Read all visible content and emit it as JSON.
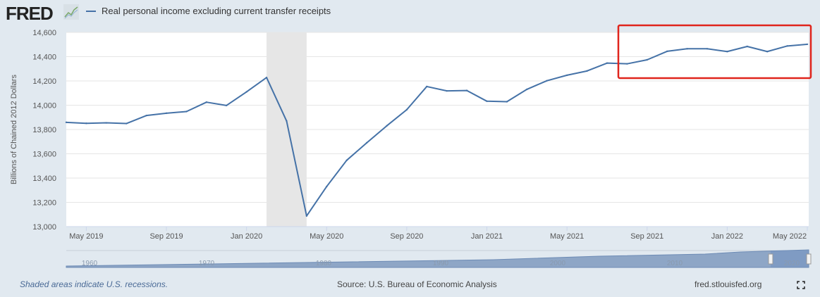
{
  "header": {
    "logo": "FRED",
    "logo_icon": "line-chart-icon"
  },
  "chart_data": {
    "type": "line",
    "title": "",
    "legend_position": "top-left",
    "series": [
      {
        "name": "Real personal income excluding current transfer receipts",
        "color": "#4572a7",
        "x": [
          "2019-04",
          "2019-05",
          "2019-06",
          "2019-07",
          "2019-08",
          "2019-09",
          "2019-10",
          "2019-11",
          "2019-12",
          "2020-01",
          "2020-02",
          "2020-03",
          "2020-04",
          "2020-05",
          "2020-06",
          "2020-07",
          "2020-08",
          "2020-09",
          "2020-10",
          "2020-11",
          "2020-12",
          "2021-01",
          "2021-02",
          "2021-03",
          "2021-04",
          "2021-05",
          "2021-06",
          "2021-07",
          "2021-08",
          "2021-09",
          "2021-10",
          "2021-11",
          "2021-12",
          "2022-01",
          "2022-02",
          "2022-03",
          "2022-04",
          "2022-05"
        ],
        "values": [
          13859,
          13851,
          13855,
          13849,
          13915,
          13934,
          13948,
          14025,
          13998,
          14110,
          14228,
          13870,
          13088,
          13330,
          13546,
          13690,
          13830,
          13963,
          14154,
          14118,
          14121,
          14033,
          14029,
          14131,
          14202,
          14247,
          14282,
          14347,
          14341,
          14374,
          14444,
          14465,
          14465,
          14442,
          14484,
          14442,
          14488,
          14502
        ]
      }
    ],
    "ylabel": "Billions of Chained 2012 Dollars",
    "xlabel": "",
    "ylim": [
      13000,
      14600
    ],
    "yticks": [
      "13,000",
      "13,200",
      "13,400",
      "13,600",
      "13,800",
      "14,000",
      "14,200",
      "14,400",
      "14,600"
    ],
    "xticks": [
      {
        "label": "May 2019",
        "at": "2019-05"
      },
      {
        "label": "Sep 2019",
        "at": "2019-09"
      },
      {
        "label": "Jan 2020",
        "at": "2020-01"
      },
      {
        "label": "May 2020",
        "at": "2020-05"
      },
      {
        "label": "Sep 2020",
        "at": "2020-09"
      },
      {
        "label": "Jan 2021",
        "at": "2021-01"
      },
      {
        "label": "May 2021",
        "at": "2021-05"
      },
      {
        "label": "Sep 2021",
        "at": "2021-09"
      },
      {
        "label": "Jan 2022",
        "at": "2022-01"
      },
      {
        "label": "May 2022",
        "at": "2022-05"
      }
    ],
    "recessions": [
      {
        "start": "2020-02",
        "end": "2020-04",
        "color": "#e6e6e6"
      }
    ],
    "grid": true,
    "highlight_box": {
      "start": "2021-08",
      "end": "2022-05",
      "color": "#e0241c"
    },
    "navigator": {
      "labels": [
        "1960",
        "1970",
        "1980",
        "1990",
        "2000",
        "2010",
        "2020"
      ]
    }
  },
  "footer": {
    "recession_note": "Shaded areas indicate U.S. recessions.",
    "source": "Source: U.S. Bureau of Economic Analysis",
    "site": "fred.stlouisfed.org",
    "expand_icon": "fullscreen-icon"
  }
}
